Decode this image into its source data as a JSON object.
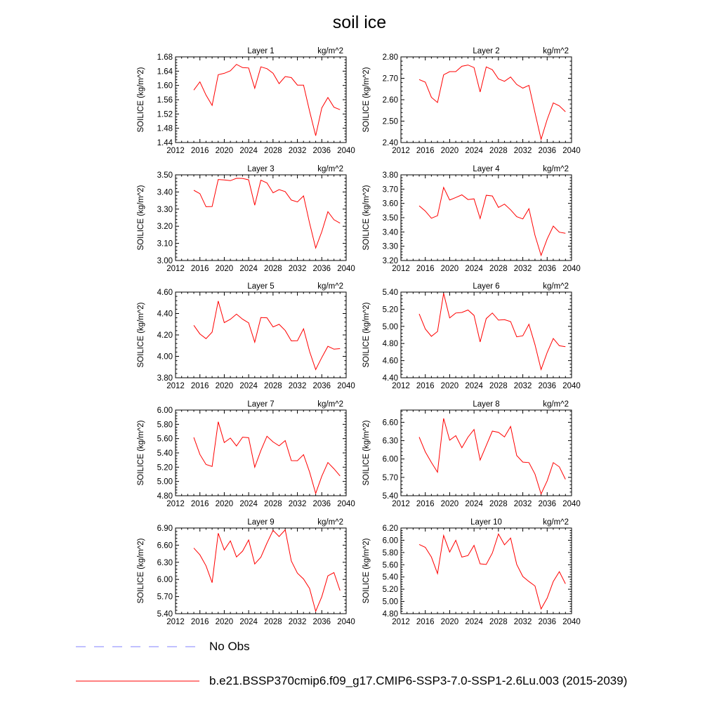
{
  "title": "soil ice",
  "colors": {
    "series": "#ff0000",
    "obs": "#8080ff",
    "axis": "#000000"
  },
  "legend": {
    "obs_label": "No Obs",
    "model_label": "b.e21.BSSP370cmip6.f09_g17.CMIP6-SSP3-7.0-SSP1-2.6Lu.003 (2015-2039)"
  },
  "chart_data": [
    {
      "type": "line",
      "title": "Layer 1",
      "units": "kg/m^2",
      "ylabel": "SOILICE  (kg/m^2)",
      "xlim": [
        2012,
        2040
      ],
      "xticks": [
        "2012",
        "2016",
        "2020",
        "2024",
        "2028",
        "2032",
        "2036",
        "2040"
      ],
      "ylim": [
        1.44,
        1.68
      ],
      "yticks": [
        "1.44",
        "1.48",
        "1.52",
        "1.56",
        "1.60",
        "1.64",
        "1.68"
      ],
      "x": [
        2015,
        2016,
        2017,
        2018,
        2019,
        2020,
        2021,
        2022,
        2023,
        2024,
        2025,
        2026,
        2027,
        2028,
        2029,
        2030,
        2031,
        2032,
        2033,
        2034,
        2035,
        2036,
        2037,
        2038,
        2039
      ],
      "y": [
        1.587,
        1.61,
        1.573,
        1.544,
        1.63,
        1.634,
        1.641,
        1.659,
        1.65,
        1.649,
        1.592,
        1.652,
        1.647,
        1.634,
        1.605,
        1.625,
        1.622,
        1.601,
        1.601,
        1.528,
        1.459,
        1.537,
        1.566,
        1.539,
        1.532
      ]
    },
    {
      "type": "line",
      "title": "Layer 2",
      "units": "kg/m^2",
      "ylabel": "SOILICE  (kg/m^2)",
      "xlim": [
        2012,
        2040
      ],
      "xticks": [
        "2012",
        "2016",
        "2020",
        "2024",
        "2028",
        "2032",
        "2036",
        "2040"
      ],
      "ylim": [
        2.4,
        2.8
      ],
      "yticks": [
        "2.40",
        "2.50",
        "2.60",
        "2.70",
        "2.80"
      ],
      "x": [
        2015,
        2016,
        2017,
        2018,
        2019,
        2020,
        2021,
        2022,
        2023,
        2024,
        2025,
        2026,
        2027,
        2028,
        2029,
        2030,
        2031,
        2032,
        2033,
        2034,
        2035,
        2036,
        2037,
        2038,
        2039
      ],
      "y": [
        2.694,
        2.682,
        2.611,
        2.587,
        2.716,
        2.731,
        2.731,
        2.756,
        2.762,
        2.75,
        2.636,
        2.753,
        2.74,
        2.697,
        2.686,
        2.706,
        2.671,
        2.654,
        2.667,
        2.54,
        2.415,
        2.508,
        2.585,
        2.571,
        2.544
      ]
    },
    {
      "type": "line",
      "title": "Layer 3",
      "units": "kg/m^2",
      "ylabel": "SOILICE  (kg/m^2)",
      "xlim": [
        2012,
        2040
      ],
      "xticks": [
        "2012",
        "2016",
        "2020",
        "2024",
        "2028",
        "2032",
        "2036",
        "2040"
      ],
      "ylim": [
        3.0,
        3.5
      ],
      "yticks": [
        "3.00",
        "3.10",
        "3.20",
        "3.30",
        "3.40",
        "3.50"
      ],
      "x": [
        2015,
        2016,
        2017,
        2018,
        2019,
        2020,
        2021,
        2022,
        2023,
        2024,
        2025,
        2026,
        2027,
        2028,
        2029,
        2030,
        2031,
        2032,
        2033,
        2034,
        2035,
        2036,
        2037,
        2038,
        2039
      ],
      "y": [
        3.41,
        3.39,
        3.314,
        3.315,
        3.473,
        3.47,
        3.466,
        3.48,
        3.479,
        3.471,
        3.323,
        3.469,
        3.453,
        3.395,
        3.414,
        3.402,
        3.353,
        3.342,
        3.377,
        3.218,
        3.073,
        3.168,
        3.285,
        3.238,
        3.218
      ]
    },
    {
      "type": "line",
      "title": "Layer 4",
      "units": "kg/m^2",
      "ylabel": "SOILICE  (kg/m^2)",
      "xlim": [
        2012,
        2040
      ],
      "xticks": [
        "2012",
        "2016",
        "2020",
        "2024",
        "2028",
        "2032",
        "2036",
        "2040"
      ],
      "ylim": [
        3.2,
        3.8
      ],
      "yticks": [
        "3.20",
        "3.30",
        "3.40",
        "3.50",
        "3.60",
        "3.70",
        "3.80"
      ],
      "x": [
        2015,
        2016,
        2017,
        2018,
        2019,
        2020,
        2021,
        2022,
        2023,
        2024,
        2025,
        2026,
        2027,
        2028,
        2029,
        2030,
        2031,
        2032,
        2033,
        2034,
        2035,
        2036,
        2037,
        2038,
        2039
      ],
      "y": [
        3.583,
        3.546,
        3.496,
        3.514,
        3.712,
        3.624,
        3.641,
        3.66,
        3.627,
        3.632,
        3.494,
        3.657,
        3.652,
        3.572,
        3.595,
        3.555,
        3.507,
        3.491,
        3.563,
        3.377,
        3.236,
        3.351,
        3.441,
        3.398,
        3.391
      ]
    },
    {
      "type": "line",
      "title": "Layer 5",
      "units": "kg/m^2",
      "ylabel": "SOILICE  (kg/m^2)",
      "xlim": [
        2012,
        2040
      ],
      "xticks": [
        "2012",
        "2016",
        "2020",
        "2024",
        "2028",
        "2032",
        "2036",
        "2040"
      ],
      "ylim": [
        3.8,
        4.6
      ],
      "yticks": [
        "3.80",
        "4.00",
        "4.20",
        "4.40",
        "4.60"
      ],
      "x": [
        2015,
        2016,
        2017,
        2018,
        2019,
        2020,
        2021,
        2022,
        2023,
        2024,
        2025,
        2026,
        2027,
        2028,
        2029,
        2030,
        2031,
        2032,
        2033,
        2034,
        2035,
        2036,
        2037,
        2038,
        2039
      ],
      "y": [
        4.29,
        4.209,
        4.165,
        4.226,
        4.517,
        4.315,
        4.346,
        4.394,
        4.347,
        4.313,
        4.132,
        4.362,
        4.36,
        4.275,
        4.299,
        4.241,
        4.144,
        4.146,
        4.257,
        4.046,
        3.877,
        3.989,
        4.094,
        4.067,
        4.072
      ]
    },
    {
      "type": "line",
      "title": "Layer 6",
      "units": "kg/m^2",
      "ylabel": "SOILICE  (kg/m^2)",
      "xlim": [
        2012,
        2040
      ],
      "xticks": [
        "2012",
        "2016",
        "2020",
        "2024",
        "2028",
        "2032",
        "2036",
        "2040"
      ],
      "ylim": [
        4.4,
        5.4
      ],
      "yticks": [
        "4.40",
        "4.60",
        "4.80",
        "5.00",
        "5.20",
        "5.40"
      ],
      "x": [
        2015,
        2016,
        2017,
        2018,
        2019,
        2020,
        2021,
        2022,
        2023,
        2024,
        2025,
        2026,
        2027,
        2028,
        2029,
        2030,
        2031,
        2032,
        2033,
        2034,
        2035,
        2036,
        2037,
        2038,
        2039
      ],
      "y": [
        5.145,
        4.97,
        4.884,
        4.94,
        5.386,
        5.098,
        5.156,
        5.162,
        5.191,
        5.128,
        4.818,
        5.091,
        5.156,
        5.073,
        5.078,
        5.056,
        4.878,
        4.89,
        5.025,
        4.787,
        4.496,
        4.695,
        4.858,
        4.774,
        4.762
      ]
    },
    {
      "type": "line",
      "title": "Layer 7",
      "units": "kg/m^2",
      "ylabel": "SOILICE  (kg/m^2)",
      "xlim": [
        2012,
        2040
      ],
      "xticks": [
        "2012",
        "2016",
        "2020",
        "2024",
        "2028",
        "2032",
        "2036",
        "2040"
      ],
      "ylim": [
        4.8,
        6.0
      ],
      "yticks": [
        "4.80",
        "5.00",
        "5.20",
        "5.40",
        "5.60",
        "5.80",
        "6.00"
      ],
      "x": [
        2015,
        2016,
        2017,
        2018,
        2019,
        2020,
        2021,
        2022,
        2023,
        2024,
        2025,
        2026,
        2027,
        2028,
        2029,
        2030,
        2031,
        2032,
        2033,
        2034,
        2035,
        2036,
        2037,
        2038,
        2039
      ],
      "y": [
        5.617,
        5.378,
        5.238,
        5.21,
        5.836,
        5.545,
        5.608,
        5.497,
        5.62,
        5.612,
        5.199,
        5.432,
        5.633,
        5.553,
        5.499,
        5.572,
        5.292,
        5.291,
        5.375,
        5.132,
        4.832,
        5.073,
        5.265,
        5.178,
        5.077
      ]
    },
    {
      "type": "line",
      "title": "Layer 8",
      "units": "kg/m^2",
      "ylabel": "SOILICE  (kg/m^2)",
      "xlim": [
        2012,
        2040
      ],
      "xticks": [
        "2012",
        "2016",
        "2020",
        "2024",
        "2028",
        "2032",
        "2036",
        "2040"
      ],
      "ylim": [
        5.4,
        6.8
      ],
      "yticks": [
        "5.40",
        "5.70",
        "6.00",
        "6.30",
        "6.60"
      ],
      "x": [
        2015,
        2016,
        2017,
        2018,
        2019,
        2020,
        2021,
        2022,
        2023,
        2024,
        2025,
        2026,
        2027,
        2028,
        2029,
        2030,
        2031,
        2032,
        2033,
        2034,
        2035,
        2036,
        2037,
        2038,
        2039
      ],
      "y": [
        6.358,
        6.117,
        5.944,
        5.785,
        6.664,
        6.308,
        6.381,
        6.184,
        6.357,
        6.482,
        5.983,
        6.219,
        6.456,
        6.436,
        6.36,
        6.531,
        6.058,
        5.95,
        5.942,
        5.753,
        5.429,
        5.643,
        5.941,
        5.872,
        5.668
      ]
    },
    {
      "type": "line",
      "title": "Layer 9",
      "units": "kg/m^2",
      "ylabel": "SOILICE  (kg/m^2)",
      "xlim": [
        2012,
        2040
      ],
      "xticks": [
        "2012",
        "2016",
        "2020",
        "2024",
        "2028",
        "2032",
        "2036",
        "2040"
      ],
      "ylim": [
        5.4,
        6.9
      ],
      "yticks": [
        "5.40",
        "5.70",
        "6.00",
        "6.30",
        "6.60",
        "6.90"
      ],
      "x": [
        2015,
        2016,
        2017,
        2018,
        2019,
        2020,
        2021,
        2022,
        2023,
        2024,
        2025,
        2026,
        2027,
        2028,
        2029,
        2030,
        2031,
        2032,
        2033,
        2034,
        2035,
        2036,
        2037,
        2038,
        2039
      ],
      "y": [
        6.548,
        6.43,
        6.238,
        5.943,
        6.809,
        6.515,
        6.675,
        6.394,
        6.495,
        6.691,
        6.271,
        6.388,
        6.636,
        6.859,
        6.751,
        6.868,
        6.322,
        6.109,
        6.007,
        5.842,
        5.442,
        5.697,
        6.063,
        6.119,
        5.805
      ]
    },
    {
      "type": "line",
      "title": "Layer 10",
      "units": "kg/m^2",
      "ylabel": "SOILICE  (kg/m^2)",
      "xlim": [
        2012,
        2040
      ],
      "xticks": [
        "2012",
        "2016",
        "2020",
        "2024",
        "2028",
        "2032",
        "2036",
        "2040"
      ],
      "ylim": [
        4.8,
        6.2
      ],
      "yticks": [
        "4.80",
        "5.00",
        "5.20",
        "5.40",
        "5.60",
        "5.80",
        "6.00",
        "6.20"
      ],
      "x": [
        2015,
        2016,
        2017,
        2018,
        2019,
        2020,
        2021,
        2022,
        2023,
        2024,
        2025,
        2026,
        2027,
        2028,
        2029,
        2030,
        2031,
        2032,
        2033,
        2034,
        2035,
        2036,
        2037,
        2038,
        2039
      ],
      "y": [
        5.931,
        5.885,
        5.725,
        5.455,
        6.078,
        5.808,
        5.999,
        5.725,
        5.75,
        5.917,
        5.615,
        5.604,
        5.792,
        6.103,
        5.926,
        6.036,
        5.605,
        5.408,
        5.326,
        5.253,
        4.877,
        5.055,
        5.327,
        5.487,
        5.289
      ]
    }
  ]
}
